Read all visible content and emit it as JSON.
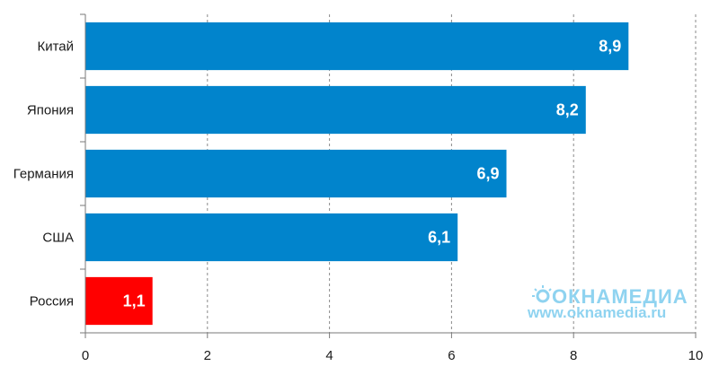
{
  "chart_data": {
    "type": "bar",
    "orientation": "horizontal",
    "categories": [
      "Китай",
      "Япония",
      "Германия",
      "США",
      "Россия"
    ],
    "values": [
      8.9,
      8.2,
      6.9,
      6.1,
      1.1
    ],
    "value_labels": [
      "8,9",
      "8,2",
      "6,9",
      "6,1",
      "1,1"
    ],
    "bar_colors": [
      "#0184cc",
      "#0184cc",
      "#0184cc",
      "#0184cc",
      "#ff0000"
    ],
    "xlim": [
      0,
      10
    ],
    "x_ticks": [
      0,
      2,
      4,
      6,
      8,
      10
    ],
    "grid": true,
    "title": "",
    "xlabel": "",
    "ylabel": ""
  },
  "watermark": {
    "brand": "ОКНАМЕДИА",
    "url": "www.oknamedia.ru"
  }
}
